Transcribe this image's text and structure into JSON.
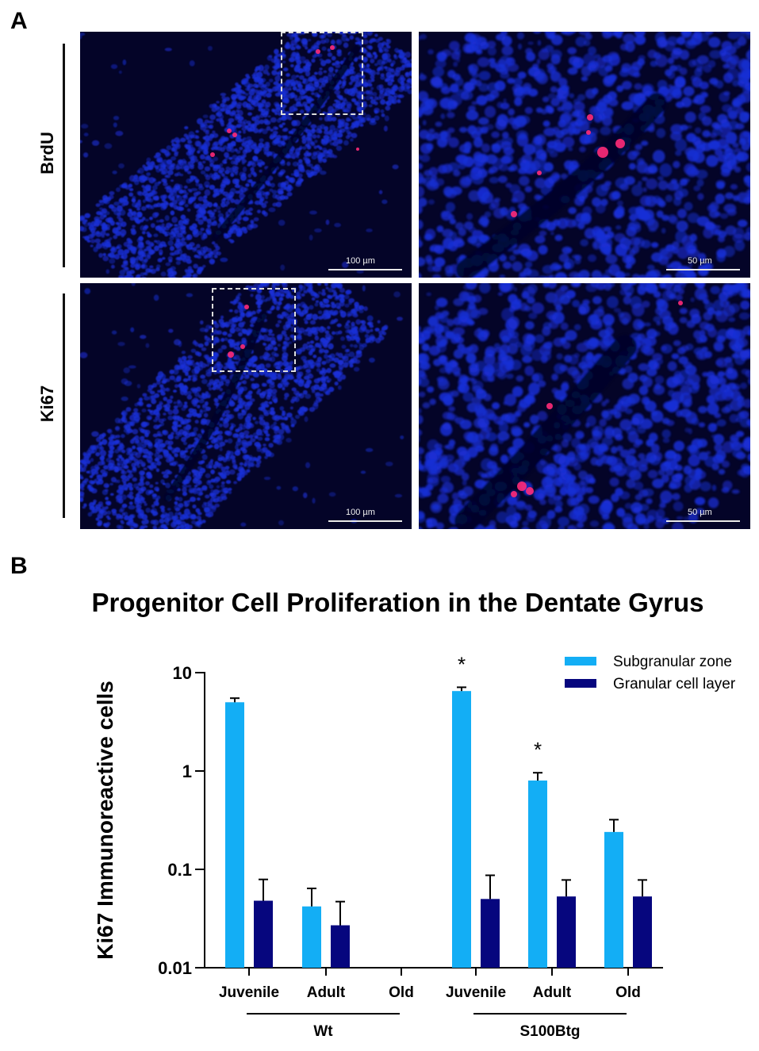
{
  "panel_a": {
    "letter": "A",
    "rows": [
      {
        "label": "BrdU",
        "scale_left": "100 µm",
        "scale_right": "50 µm"
      },
      {
        "label": "Ki67",
        "scale_left": "100 µm",
        "scale_right": "50 µm"
      }
    ],
    "colors": {
      "nuclei": "#1a2fd6",
      "background": "#040428",
      "marker": "#ff2a78"
    }
  },
  "panel_b": {
    "letter": "B",
    "title": "Progenitor Cell Proliferation in the Dentate Gyrus"
  },
  "chart_data": {
    "type": "bar",
    "title": "Progenitor Cell Proliferation in the Dentate Gyrus",
    "ylabel": "Ki67 Immunoreactive cells",
    "xlabel": "",
    "yscale": "log",
    "ylim": [
      0.01,
      10
    ],
    "yticks": [
      "0.01",
      "0.1",
      "1",
      "10"
    ],
    "categories": [
      "Juvenile",
      "Adult",
      "Old",
      "Juvenile",
      "Adult",
      "Old"
    ],
    "groups": [
      {
        "label": "Wt",
        "categories": [
          0,
          1,
          2
        ]
      },
      {
        "label": "S100Btg",
        "categories": [
          3,
          4,
          5
        ]
      }
    ],
    "series": [
      {
        "name": "Subgranular zone",
        "color": "#13aef5",
        "values": [
          5.0,
          0.042,
          null,
          6.5,
          0.8,
          0.24
        ],
        "errors": [
          0.5,
          0.022,
          null,
          0.6,
          0.16,
          0.08
        ]
      },
      {
        "name": "Granular cell layer",
        "color": "#06067e",
        "values": [
          0.048,
          0.027,
          null,
          0.05,
          0.053,
          0.053
        ],
        "errors": [
          0.031,
          0.02,
          null,
          0.037,
          0.025,
          0.025
        ]
      }
    ],
    "annotations": [
      {
        "text": "*",
        "category": 3,
        "series": 0
      },
      {
        "text": "*",
        "category": 4,
        "series": 0
      }
    ],
    "legend_position": "top-right",
    "grid": false
  }
}
